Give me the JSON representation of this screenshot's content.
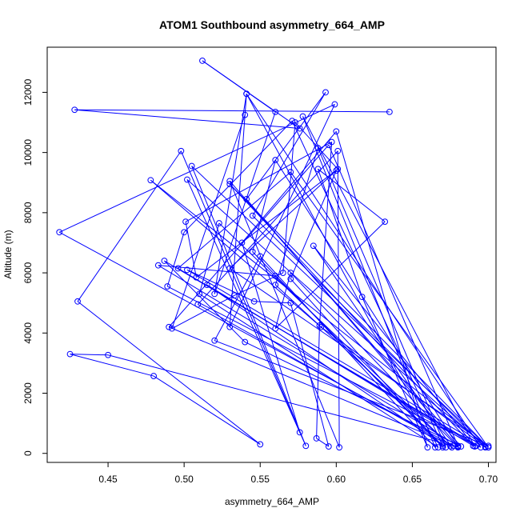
{
  "chart_data": {
    "type": "line",
    "title": "ATOM1 Southbound asymmetry_664_AMP",
    "xlabel": "asymmetry_664_AMP",
    "ylabel": "Altitude (m)",
    "xlim": [
      0.41,
      0.705
    ],
    "ylim": [
      -300,
      13500
    ],
    "x_ticks": [
      0.45,
      0.5,
      0.55,
      0.6,
      0.65,
      0.7
    ],
    "x_tick_labels": [
      "0.45",
      "0.50",
      "0.55",
      "0.60",
      "0.65",
      "0.70"
    ],
    "y_ticks": [
      0,
      2000,
      4000,
      6000,
      8000,
      10000,
      12000
    ],
    "y_tick_labels": [
      "0",
      "2000",
      "4000",
      "6000",
      "8000",
      "10000",
      "12000"
    ],
    "grid": false,
    "series": [
      {
        "color": "#0000ff",
        "marker": "open-circle",
        "points": [
          [
            0.635,
            11350
          ],
          [
            0.428,
            11420
          ],
          [
            0.576,
            10800
          ],
          [
            0.512,
            13050
          ],
          [
            0.56,
            11350
          ],
          [
            0.52,
            5300
          ],
          [
            0.541,
            11950
          ],
          [
            0.53,
            4200
          ],
          [
            0.599,
            11600
          ],
          [
            0.418,
            7350
          ],
          [
            0.677,
            250
          ],
          [
            0.45,
            3270
          ],
          [
            0.425,
            3300
          ],
          [
            0.48,
            2570
          ],
          [
            0.55,
            300
          ],
          [
            0.43,
            5050
          ],
          [
            0.498,
            10050
          ],
          [
            0.576,
            700
          ],
          [
            0.538,
            7000
          ],
          [
            0.6,
            10700
          ],
          [
            0.66,
            200
          ],
          [
            0.617,
            5200
          ],
          [
            0.588,
            9450
          ],
          [
            0.632,
            7700
          ],
          [
            0.56,
            4150
          ],
          [
            0.57,
            6000
          ],
          [
            0.68,
            200
          ],
          [
            0.49,
            4200
          ],
          [
            0.595,
            10250
          ],
          [
            0.68,
            250
          ],
          [
            0.483,
            6250
          ],
          [
            0.56,
            5900
          ],
          [
            0.67,
            250
          ],
          [
            0.571,
            11050
          ],
          [
            0.5,
            7350
          ],
          [
            0.489,
            5550
          ],
          [
            0.692,
            250
          ],
          [
            0.496,
            6150
          ],
          [
            0.57,
            9350
          ],
          [
            0.7,
            200
          ],
          [
            0.478,
            9080
          ],
          [
            0.59,
            4200
          ],
          [
            0.698,
            220
          ],
          [
            0.502,
            9100
          ],
          [
            0.58,
            250
          ],
          [
            0.505,
            9550
          ],
          [
            0.7,
            200
          ],
          [
            0.53,
            8950
          ],
          [
            0.69,
            250
          ],
          [
            0.515,
            5600
          ],
          [
            0.672,
            200
          ],
          [
            0.588,
            10150
          ],
          [
            0.56,
            5600
          ],
          [
            0.675,
            240
          ],
          [
            0.509,
            4950
          ],
          [
            0.601,
            10050
          ],
          [
            0.602,
            200
          ],
          [
            0.53,
            9050
          ],
          [
            0.682,
            230
          ],
          [
            0.54,
            3700
          ],
          [
            0.487,
            6400
          ],
          [
            0.695,
            200
          ],
          [
            0.541,
            11950
          ],
          [
            0.667,
            200
          ],
          [
            0.51,
            5300
          ],
          [
            0.523,
            7650
          ],
          [
            0.676,
            200
          ],
          [
            0.585,
            6900
          ],
          [
            0.691,
            230
          ],
          [
            0.578,
            11200
          ],
          [
            0.665,
            200
          ],
          [
            0.55,
            6550
          ],
          [
            0.52,
            3750
          ],
          [
            0.7,
            250
          ],
          [
            0.53,
            6150
          ],
          [
            0.6,
            9400
          ],
          [
            0.57,
            5800
          ],
          [
            0.67,
            200
          ],
          [
            0.545,
            6700
          ],
          [
            0.56,
            9750
          ],
          [
            0.68,
            230
          ],
          [
            0.541,
            8450
          ],
          [
            0.593,
            12000
          ],
          [
            0.545,
            7900
          ],
          [
            0.698,
            200
          ],
          [
            0.502,
            6100
          ],
          [
            0.546,
            5050
          ],
          [
            0.57,
            5000
          ],
          [
            0.595,
            230
          ],
          [
            0.587,
            500
          ],
          [
            0.589,
            4250
          ],
          [
            0.597,
            10350
          ],
          [
            0.501,
            7700
          ],
          [
            0.508,
            5850
          ],
          [
            0.601,
            9450
          ],
          [
            0.573,
            11000
          ],
          [
            0.565,
            6000
          ],
          [
            0.533,
            5250
          ],
          [
            0.492,
            4150
          ],
          [
            0.54,
            11250
          ]
        ]
      }
    ]
  }
}
